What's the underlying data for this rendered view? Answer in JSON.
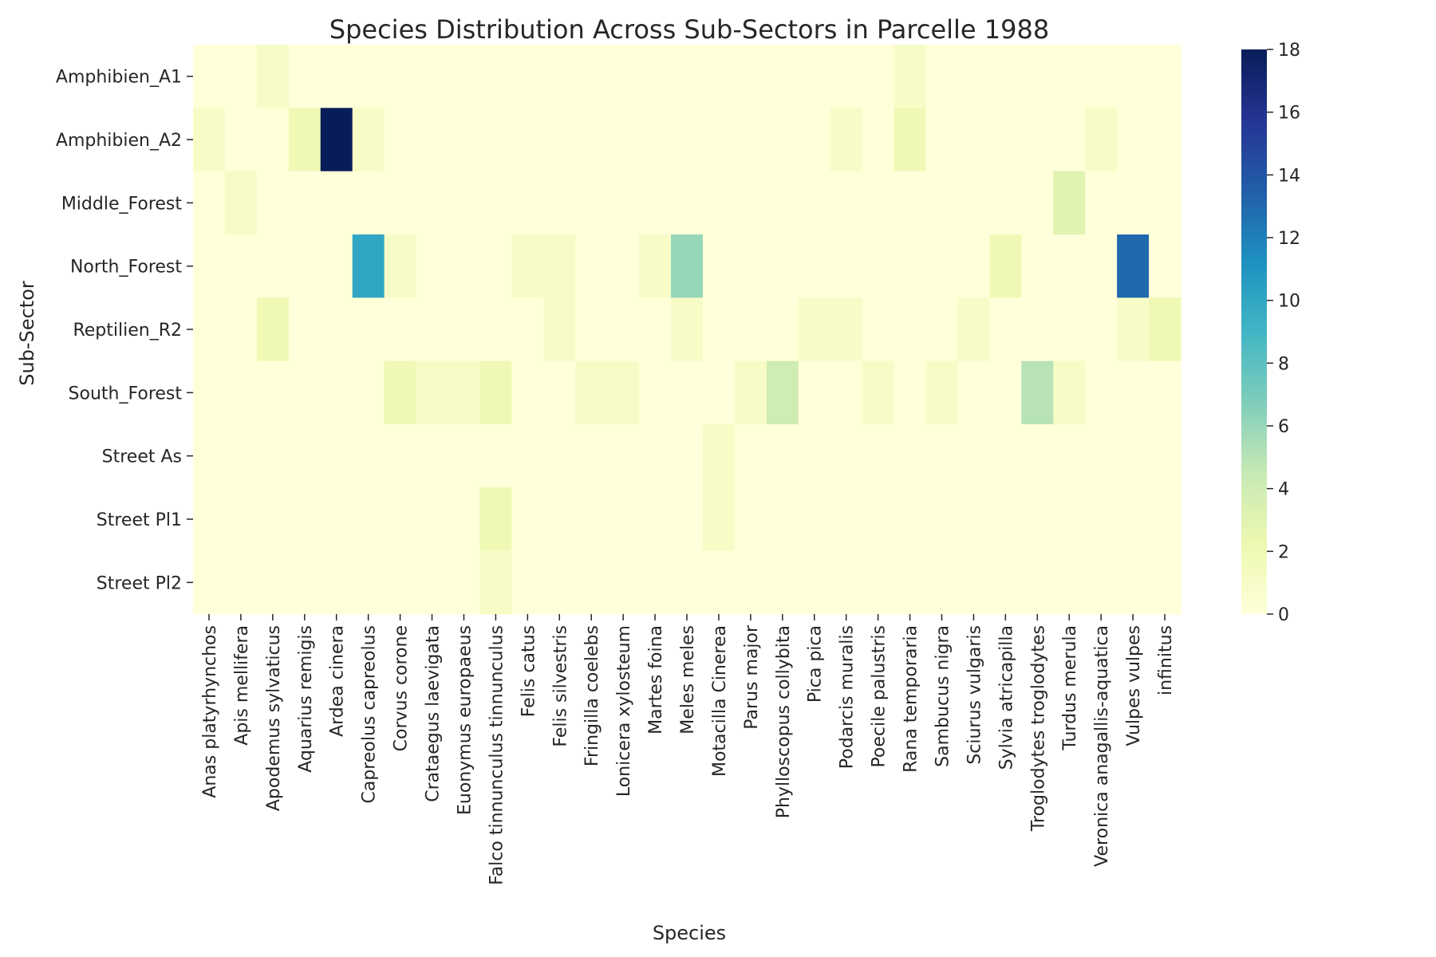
{
  "chart_data": {
    "type": "heatmap",
    "title": "Species Distribution Across Sub-Sectors in Parcelle 1988",
    "xlabel": "Species",
    "ylabel": "Sub-Sector",
    "x_categories": [
      "Anas platyrhynchos",
      "Apis mellifera",
      "Apodemus sylvaticus",
      "Aquarius remigis",
      "Ardea cinera",
      "Capreolus capreolus",
      "Corvus corone",
      "Crataegus laevigata",
      "Euonymus europaeus",
      "Falco tinnunculus tinnunculus",
      "Felis catus",
      "Felis silvestris",
      "Fringilla coelebs",
      "Lonicera xylosteum",
      "Martes foina",
      "Meles meles",
      "Motacilla Cinerea",
      "Parus major",
      "Phylloscopus collybita",
      "Pica pica",
      "Podarcis muralis",
      "Poecile palustris",
      "Rana temporaria",
      "Sambucus nigra",
      "Sciurus vulgaris",
      "Sylvia atricapilla",
      "Troglodytes troglodytes",
      "Turdus merula",
      "Veronica anagallis-aquatica",
      "Vulpes vulpes",
      "infinitus"
    ],
    "y_categories": [
      "Amphibien_A1",
      "Amphibien_A2",
      "Middle_Forest",
      "North_Forest",
      "Reptilien_R2",
      "South_Forest",
      "Street As",
      "Street Pl1",
      "Street Pl2"
    ],
    "values": [
      [
        0,
        0,
        1,
        0,
        0,
        0,
        0,
        0,
        0,
        0,
        0,
        0,
        0,
        0,
        0,
        0,
        0,
        0,
        0,
        0,
        0,
        0,
        1,
        0,
        0,
        0,
        0,
        0,
        0,
        0,
        0
      ],
      [
        1,
        0,
        0,
        2,
        18,
        1,
        0,
        0,
        0,
        0,
        0,
        0,
        0,
        0,
        0,
        0,
        0,
        0,
        0,
        0,
        1,
        0,
        2,
        0,
        0,
        0,
        0,
        0,
        1,
        0,
        0
      ],
      [
        0,
        1,
        0,
        0,
        0,
        0,
        0,
        0,
        0,
        0,
        0,
        0,
        0,
        0,
        0,
        0,
        0,
        0,
        0,
        0,
        0,
        0,
        0,
        0,
        0,
        0,
        0,
        3,
        0,
        0,
        0
      ],
      [
        0,
        0,
        0,
        0,
        0,
        10,
        1,
        0,
        0,
        0,
        1,
        1,
        0,
        0,
        1,
        6,
        0,
        0,
        0,
        0,
        0,
        0,
        0,
        0,
        0,
        2,
        0,
        0,
        0,
        13,
        0
      ],
      [
        0,
        0,
        2,
        0,
        0,
        0,
        0,
        0,
        0,
        0,
        0,
        1,
        0,
        0,
        0,
        1,
        0,
        0,
        0,
        1,
        1,
        0,
        0,
        0,
        1,
        0,
        0,
        0,
        0,
        1,
        2
      ],
      [
        0,
        0,
        0,
        0,
        0,
        0,
        2,
        1,
        1,
        2,
        0,
        0,
        1,
        1,
        0,
        0,
        0,
        1,
        4,
        0,
        0,
        1,
        0,
        1,
        0,
        0,
        5,
        1,
        0,
        0,
        0
      ],
      [
        0,
        0,
        0,
        0,
        0,
        0,
        0,
        0,
        0,
        0,
        0,
        0,
        0,
        0,
        0,
        0,
        1,
        0,
        0,
        0,
        0,
        0,
        0,
        0,
        0,
        0,
        0,
        0,
        0,
        0,
        0
      ],
      [
        0,
        0,
        0,
        0,
        0,
        0,
        0,
        0,
        0,
        2,
        0,
        0,
        0,
        0,
        0,
        0,
        1,
        0,
        0,
        0,
        0,
        0,
        0,
        0,
        0,
        0,
        0,
        0,
        0,
        0,
        0
      ],
      [
        0,
        0,
        0,
        0,
        0,
        0,
        0,
        0,
        0,
        1,
        0,
        0,
        0,
        0,
        0,
        0,
        0,
        0,
        0,
        0,
        0,
        0,
        0,
        0,
        0,
        0,
        0,
        0,
        0,
        0,
        0
      ]
    ],
    "colorbar": {
      "range": [
        0,
        18
      ],
      "ticks": [
        "0",
        "2",
        "4",
        "6",
        "8",
        "10",
        "12",
        "14",
        "16",
        "18"
      ],
      "colormap": "YlGnBu"
    }
  }
}
